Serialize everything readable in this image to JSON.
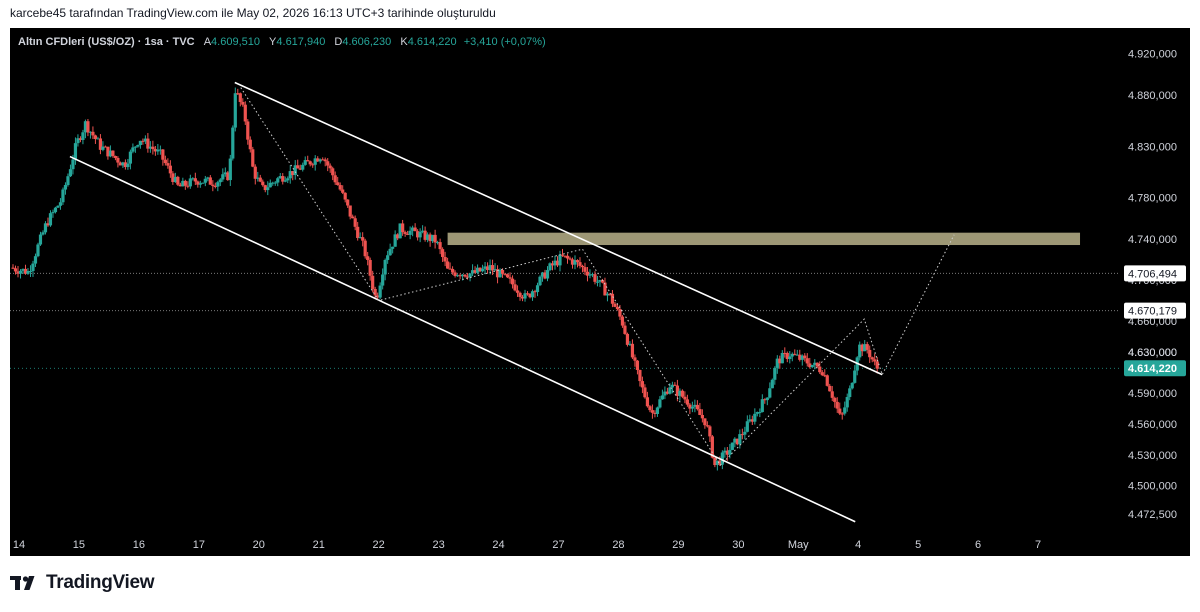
{
  "caption": "karcebe45 tarafından TradingView.com ile May 02, 2026 16:13 UTC+3 tarihinde oluşturuldu",
  "legend": {
    "symbol": "Altın CFDleri (US$/OZ) · 1sa · TVC",
    "a_label": "A",
    "a_value": "4.609,510",
    "y_label": "Y",
    "y_value": "4.617,940",
    "d_label": "D",
    "d_value": "4.606,230",
    "k_label": "K",
    "k_value": "4.614,220",
    "change": "+3,410 (+0,07%)"
  },
  "brand": {
    "name": "TradingView",
    "logo_icon": "tradingview-logo-icon"
  },
  "colors": {
    "up": "#26a69a",
    "down": "#ef5350",
    "background": "#000000",
    "zone": "#b9b28a",
    "channel": "#ffffff",
    "current_price": "#26a69a"
  },
  "chart_data": {
    "type": "candlestick",
    "symbol": "Altın CFDleri (US$/OZ)",
    "timeframe": "1sa",
    "x_ticks": [
      {
        "label": "14",
        "day": 0
      },
      {
        "label": "15",
        "day": 1
      },
      {
        "label": "16",
        "day": 2
      },
      {
        "label": "17",
        "day": 3
      },
      {
        "label": "20",
        "day": 4
      },
      {
        "label": "21",
        "day": 5
      },
      {
        "label": "22",
        "day": 6
      },
      {
        "label": "23",
        "day": 7
      },
      {
        "label": "24",
        "day": 8
      },
      {
        "label": "27",
        "day": 9
      },
      {
        "label": "28",
        "day": 10
      },
      {
        "label": "29",
        "day": 11
      },
      {
        "label": "30",
        "day": 12
      },
      {
        "label": "May",
        "day": 13
      },
      {
        "label": "4",
        "day": 14
      },
      {
        "label": "5",
        "day": 15
      },
      {
        "label": "6",
        "day": 16
      },
      {
        "label": "7",
        "day": 17
      }
    ],
    "y_ticks": [
      {
        "label": "4.920,000",
        "value": 4920
      },
      {
        "label": "4.880,000",
        "value": 4880
      },
      {
        "label": "4.830,000",
        "value": 4830
      },
      {
        "label": "4.780,000",
        "value": 4780
      },
      {
        "label": "4.740,000",
        "value": 4740
      },
      {
        "label": "4.630,000",
        "value": 4630
      },
      {
        "label": "4.590,000",
        "value": 4590
      },
      {
        "label": "4.560,000",
        "value": 4560
      },
      {
        "label": "4.530,000",
        "value": 4530
      },
      {
        "label": "4.500,000",
        "value": 4500
      },
      {
        "label": "4.472,500",
        "value": 4472.5
      }
    ],
    "ylim": [
      4455,
      4945
    ],
    "xlim": [
      -0.15,
      18.2
    ],
    "price_path": [
      {
        "day": -0.1,
        "price": 4712
      },
      {
        "day": 0.2,
        "price": 4708
      },
      {
        "day": 0.5,
        "price": 4755
      },
      {
        "day": 0.75,
        "price": 4778
      },
      {
        "day": 1.0,
        "price": 4832
      },
      {
        "day": 1.15,
        "price": 4852
      },
      {
        "day": 1.4,
        "price": 4830
      },
      {
        "day": 1.8,
        "price": 4812
      },
      {
        "day": 2.05,
        "price": 4838
      },
      {
        "day": 2.4,
        "price": 4822
      },
      {
        "day": 2.7,
        "price": 4790
      },
      {
        "day": 3.0,
        "price": 4797
      },
      {
        "day": 3.3,
        "price": 4795
      },
      {
        "day": 3.55,
        "price": 4802
      },
      {
        "day": 3.65,
        "price": 4885
      },
      {
        "day": 3.8,
        "price": 4862
      },
      {
        "day": 3.95,
        "price": 4806
      },
      {
        "day": 4.1,
        "price": 4788
      },
      {
        "day": 4.35,
        "price": 4798
      },
      {
        "day": 4.7,
        "price": 4808
      },
      {
        "day": 5.1,
        "price": 4822
      },
      {
        "day": 5.4,
        "price": 4788
      },
      {
        "day": 5.8,
        "price": 4730
      },
      {
        "day": 6.0,
        "price": 4680
      },
      {
        "day": 6.15,
        "price": 4722
      },
      {
        "day": 6.4,
        "price": 4750
      },
      {
        "day": 6.7,
        "price": 4745
      },
      {
        "day": 7.0,
        "price": 4738
      },
      {
        "day": 7.2,
        "price": 4708
      },
      {
        "day": 7.6,
        "price": 4706
      },
      {
        "day": 7.9,
        "price": 4712
      },
      {
        "day": 8.3,
        "price": 4695
      },
      {
        "day": 8.5,
        "price": 4682
      },
      {
        "day": 8.9,
        "price": 4712
      },
      {
        "day": 9.1,
        "price": 4722
      },
      {
        "day": 9.3,
        "price": 4718
      },
      {
        "day": 9.6,
        "price": 4705
      },
      {
        "day": 9.9,
        "price": 4684
      },
      {
        "day": 10.1,
        "price": 4660
      },
      {
        "day": 10.4,
        "price": 4600
      },
      {
        "day": 10.6,
        "price": 4570
      },
      {
        "day": 10.9,
        "price": 4598
      },
      {
        "day": 11.2,
        "price": 4582
      },
      {
        "day": 11.5,
        "price": 4562
      },
      {
        "day": 11.65,
        "price": 4520
      },
      {
        "day": 11.85,
        "price": 4532
      },
      {
        "day": 12.05,
        "price": 4546
      },
      {
        "day": 12.3,
        "price": 4568
      },
      {
        "day": 12.5,
        "price": 4585
      },
      {
        "day": 12.7,
        "price": 4622
      },
      {
        "day": 12.9,
        "price": 4628
      },
      {
        "day": 13.2,
        "price": 4620
      },
      {
        "day": 13.45,
        "price": 4612
      },
      {
        "day": 13.6,
        "price": 4590
      },
      {
        "day": 13.75,
        "price": 4564
      },
      {
        "day": 13.9,
        "price": 4592
      },
      {
        "day": 14.05,
        "price": 4636
      },
      {
        "day": 14.2,
        "price": 4632
      },
      {
        "day": 14.35,
        "price": 4614
      }
    ],
    "channel_lines": [
      {
        "start": {
          "day": 3.6,
          "price": 4892
        },
        "end": {
          "day": 14.4,
          "price": 4608
        }
      },
      {
        "start": {
          "day": 0.85,
          "price": 4820
        },
        "end": {
          "day": 13.95,
          "price": 4465
        }
      }
    ],
    "projection_path": [
      {
        "day": 3.7,
        "price": 4887
      },
      {
        "day": 6.0,
        "price": 4680
      },
      {
        "day": 9.4,
        "price": 4730
      },
      {
        "day": 11.7,
        "price": 4520
      },
      {
        "day": 14.1,
        "price": 4662
      },
      {
        "day": 14.4,
        "price": 4608
      },
      {
        "day": 15.6,
        "price": 4744
      }
    ],
    "resistance_zone": {
      "day_start": 7.15,
      "day_end": 17.7,
      "price_low": 4734,
      "price_high": 4746
    },
    "horizontal_levels": [
      {
        "label": "4.706,494",
        "value": 4706.494
      },
      {
        "label": "4.670,179",
        "value": 4670.179
      }
    ],
    "current_price": {
      "label": "4.614,220",
      "value": 4614.22
    },
    "hidden_tick_labels": [
      {
        "label": "4.700,000",
        "value": 4700
      },
      {
        "label": "4.660,000",
        "value": 4660
      },
      {
        "label": "4.630,000",
        "value": 4630
      }
    ]
  }
}
